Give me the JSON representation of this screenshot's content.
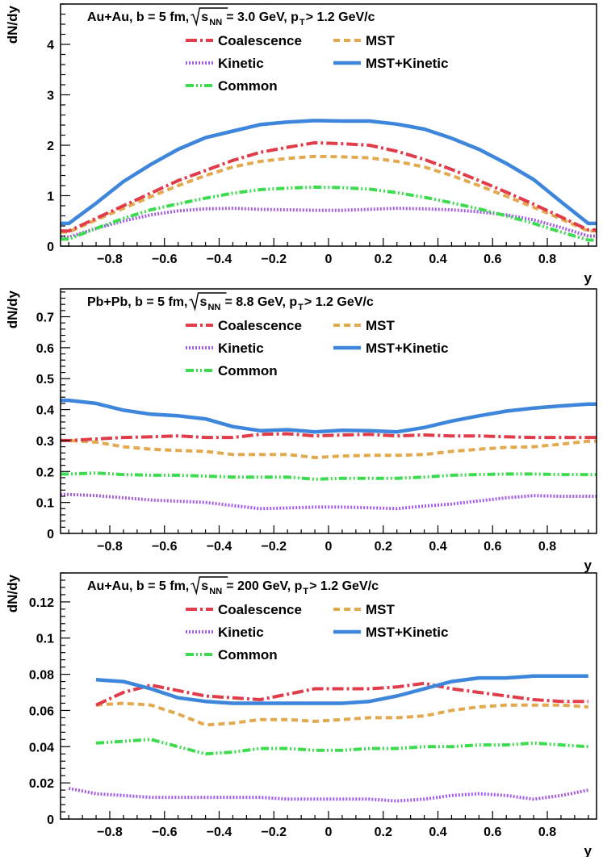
{
  "chart_data": [
    {
      "type": "line",
      "title_parts": {
        "pre": "Au+Au, b = 5 fm, ",
        "sqrt_s": "s",
        "sqrt_sub": "NN",
        "energy": " = 3.0 GeV, p",
        "pt_sub": "T",
        "post": " > 1.2 GeV/c"
      },
      "xlabel": "y",
      "ylabel": "dN/dy",
      "xlim": [
        -0.98,
        0.98
      ],
      "ylim": [
        0,
        4.8
      ],
      "xticks": [
        -0.8,
        -0.6,
        -0.4,
        -0.2,
        0,
        0.2,
        0.4,
        0.6,
        0.8
      ],
      "xtick_labels": [
        "−0.8",
        "−0.6",
        "−0.4",
        "−0.2",
        "0",
        "0.2",
        "0.4",
        "0.6",
        "0.8"
      ],
      "yticks": [
        0,
        1,
        2,
        3,
        4
      ],
      "ytick_labels": [
        "0",
        "1",
        "2",
        "3",
        "4"
      ],
      "x": [
        -0.95,
        -0.85,
        -0.75,
        -0.65,
        -0.55,
        -0.45,
        -0.35,
        -0.25,
        -0.15,
        -0.05,
        0.05,
        0.15,
        0.25,
        0.35,
        0.45,
        0.55,
        0.65,
        0.75,
        0.85,
        0.95
      ],
      "series": [
        {
          "name": "Coalescence",
          "values": [
            0.3,
            0.55,
            0.8,
            1.05,
            1.3,
            1.5,
            1.7,
            1.86,
            1.96,
            2.05,
            2.03,
            2.0,
            1.88,
            1.72,
            1.52,
            1.3,
            1.07,
            0.83,
            0.58,
            0.32
          ]
        },
        {
          "name": "MST",
          "values": [
            0.28,
            0.52,
            0.75,
            0.98,
            1.2,
            1.4,
            1.57,
            1.68,
            1.74,
            1.78,
            1.77,
            1.75,
            1.68,
            1.57,
            1.4,
            1.2,
            0.99,
            0.77,
            0.54,
            0.3
          ]
        },
        {
          "name": "Kinetic",
          "values": [
            0.18,
            0.35,
            0.5,
            0.62,
            0.7,
            0.74,
            0.75,
            0.73,
            0.72,
            0.71,
            0.71,
            0.73,
            0.75,
            0.74,
            0.72,
            0.68,
            0.62,
            0.52,
            0.37,
            0.2
          ]
        },
        {
          "name": "MST+Kinetic",
          "values": [
            0.45,
            0.85,
            1.28,
            1.62,
            1.92,
            2.15,
            2.28,
            2.41,
            2.46,
            2.49,
            2.48,
            2.48,
            2.42,
            2.32,
            2.14,
            1.92,
            1.64,
            1.32,
            0.88,
            0.45
          ]
        },
        {
          "name": "Common",
          "values": [
            0.14,
            0.35,
            0.55,
            0.72,
            0.84,
            0.95,
            1.05,
            1.12,
            1.15,
            1.17,
            1.16,
            1.13,
            1.06,
            0.97,
            0.86,
            0.74,
            0.6,
            0.45,
            0.28,
            0.12
          ]
        }
      ]
    },
    {
      "type": "line",
      "title_parts": {
        "pre": "Pb+Pb, b = 5 fm, ",
        "sqrt_s": "s",
        "sqrt_sub": "NN",
        "energy": " = 8.8 GeV, p",
        "pt_sub": "T",
        "post": " > 1.2 GeV/c"
      },
      "xlabel": "y",
      "ylabel": "dN/dy",
      "xlim": [
        -0.98,
        0.98
      ],
      "ylim": [
        0,
        0.79
      ],
      "xticks": [
        -0.8,
        -0.6,
        -0.4,
        -0.2,
        0,
        0.2,
        0.4,
        0.6,
        0.8
      ],
      "xtick_labels": [
        "−0.8",
        "−0.6",
        "−0.4",
        "−0.2",
        "0",
        "0.2",
        "0.4",
        "0.6",
        "0.8"
      ],
      "yticks": [
        0,
        0.1,
        0.2,
        0.3,
        0.4,
        0.5,
        0.6,
        0.7
      ],
      "ytick_labels": [
        "0",
        "0.1",
        "0.2",
        "0.3",
        "0.4",
        "0.5",
        "0.6",
        "0.7"
      ],
      "x": [
        -0.95,
        -0.85,
        -0.75,
        -0.65,
        -0.55,
        -0.45,
        -0.35,
        -0.25,
        -0.15,
        -0.05,
        0.05,
        0.15,
        0.25,
        0.35,
        0.45,
        0.55,
        0.65,
        0.75,
        0.85,
        0.95
      ],
      "series": [
        {
          "name": "Coalescence",
          "values": [
            0.3,
            0.305,
            0.31,
            0.312,
            0.315,
            0.31,
            0.31,
            0.32,
            0.322,
            0.315,
            0.318,
            0.32,
            0.315,
            0.318,
            0.315,
            0.315,
            0.312,
            0.31,
            0.31,
            0.31
          ]
        },
        {
          "name": "MST",
          "values": [
            0.3,
            0.295,
            0.28,
            0.272,
            0.268,
            0.265,
            0.255,
            0.255,
            0.255,
            0.245,
            0.25,
            0.252,
            0.252,
            0.255,
            0.265,
            0.272,
            0.278,
            0.28,
            0.288,
            0.298
          ]
        },
        {
          "name": "Kinetic",
          "values": [
            0.126,
            0.122,
            0.115,
            0.108,
            0.104,
            0.1,
            0.09,
            0.08,
            0.082,
            0.085,
            0.085,
            0.083,
            0.08,
            0.088,
            0.095,
            0.105,
            0.115,
            0.122,
            0.12,
            0.12
          ]
        },
        {
          "name": "MST+Kinetic",
          "values": [
            0.43,
            0.42,
            0.398,
            0.385,
            0.38,
            0.37,
            0.345,
            0.332,
            0.335,
            0.328,
            0.333,
            0.332,
            0.328,
            0.342,
            0.363,
            0.38,
            0.395,
            0.405,
            0.412,
            0.418
          ]
        },
        {
          "name": "Common",
          "values": [
            0.192,
            0.195,
            0.19,
            0.188,
            0.188,
            0.185,
            0.182,
            0.182,
            0.182,
            0.175,
            0.178,
            0.178,
            0.178,
            0.182,
            0.188,
            0.19,
            0.192,
            0.192,
            0.19,
            0.19
          ]
        }
      ]
    },
    {
      "type": "line",
      "title_parts": {
        "pre": "Au+Au, b = 5 fm, ",
        "sqrt_s": "s",
        "sqrt_sub": "NN",
        "energy": " = 200 GeV, p",
        "pt_sub": "T",
        "post": " > 1.2 GeV/c"
      },
      "xlabel": "y",
      "ylabel": "dN/dy",
      "xlim": [
        -0.98,
        0.98
      ],
      "ylim": [
        0,
        0.136
      ],
      "xticks": [
        -0.8,
        -0.6,
        -0.4,
        -0.2,
        0,
        0.2,
        0.4,
        0.6,
        0.8
      ],
      "xtick_labels": [
        "−0.8",
        "−0.6",
        "−0.4",
        "−0.2",
        "0",
        "0.2",
        "0.4",
        "0.6",
        "0.8"
      ],
      "yticks": [
        0,
        0.02,
        0.04,
        0.06,
        0.08,
        0.1,
        0.12
      ],
      "ytick_labels": [
        "0",
        "0.02",
        "0.04",
        "0.06",
        "0.08",
        "0.1",
        "0.12"
      ],
      "x": [
        -0.95,
        -0.85,
        -0.75,
        -0.65,
        -0.55,
        -0.45,
        -0.35,
        -0.25,
        -0.15,
        -0.05,
        0.05,
        0.15,
        0.25,
        0.35,
        0.45,
        0.55,
        0.65,
        0.75,
        0.85,
        0.95
      ],
      "series": [
        {
          "name": "Coalescence",
          "values": [
            null,
            0.063,
            0.07,
            0.074,
            0.071,
            0.068,
            0.067,
            0.066,
            0.069,
            0.072,
            0.072,
            0.072,
            0.073,
            0.075,
            0.072,
            0.07,
            0.068,
            0.066,
            0.065,
            0.065
          ]
        },
        {
          "name": "MST",
          "values": [
            null,
            0.063,
            0.064,
            0.063,
            0.058,
            0.052,
            0.053,
            0.055,
            0.055,
            0.054,
            0.055,
            0.056,
            0.056,
            0.057,
            0.06,
            0.062,
            0.063,
            0.063,
            0.063,
            0.062
          ]
        },
        {
          "name": "Kinetic",
          "values": [
            0.017,
            0.014,
            0.013,
            0.012,
            0.012,
            0.012,
            0.012,
            0.012,
            0.011,
            0.011,
            0.011,
            0.011,
            0.01,
            0.011,
            0.013,
            0.014,
            0.013,
            0.011,
            0.013,
            0.016
          ]
        },
        {
          "name": "MST+Kinetic",
          "values": [
            null,
            0.077,
            0.076,
            0.072,
            0.067,
            0.065,
            0.064,
            0.064,
            0.064,
            0.064,
            0.064,
            0.065,
            0.068,
            0.072,
            0.076,
            0.078,
            0.078,
            0.079,
            0.079,
            0.079
          ]
        },
        {
          "name": "Common",
          "values": [
            null,
            0.042,
            0.043,
            0.044,
            0.04,
            0.036,
            0.037,
            0.039,
            0.039,
            0.038,
            0.038,
            0.039,
            0.039,
            0.04,
            0.04,
            0.041,
            0.041,
            0.042,
            0.041,
            0.04
          ]
        }
      ]
    }
  ],
  "series_style": {
    "Coalescence": {
      "color": "#e03c4a",
      "dash": "14,4,3,4"
    },
    "MST": {
      "color": "#e3a94f",
      "dash": "8,5"
    },
    "Kinetic": {
      "color": "#a45ce6",
      "dash": "2,2"
    },
    "MST+Kinetic": {
      "color": "#3d86dc",
      "dash": ""
    },
    "Common": {
      "color": "#3ddc4f",
      "dash": "10,3,2,3,2,3"
    }
  },
  "legend": [
    "Coalescence",
    "MST",
    "Kinetic",
    "MST+Kinetic",
    "Common"
  ]
}
